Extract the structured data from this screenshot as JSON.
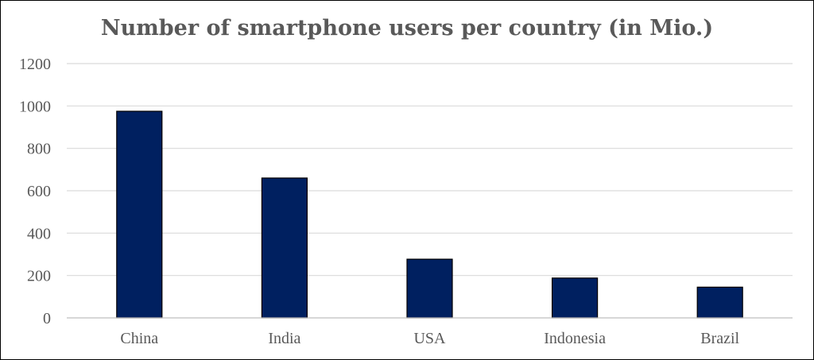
{
  "chart_data": {
    "type": "bar",
    "title": "Number of smartphone users per country (in Mio.)",
    "categories": [
      "China",
      "India",
      "USA",
      "Indonesia",
      "Brazil"
    ],
    "values": [
      975,
      660,
      277,
      188,
      145
    ],
    "xlabel": "",
    "ylabel": "",
    "ylim": [
      0,
      1200
    ],
    "yticks": [
      0,
      200,
      400,
      600,
      800,
      1000,
      1200
    ],
    "grid": true,
    "legend": "none",
    "colors": {
      "bar": "#002060",
      "bar_outline": "#000000",
      "grid": "#d9d9d9",
      "axis": "#bfbfbf",
      "text": "#595959"
    }
  }
}
